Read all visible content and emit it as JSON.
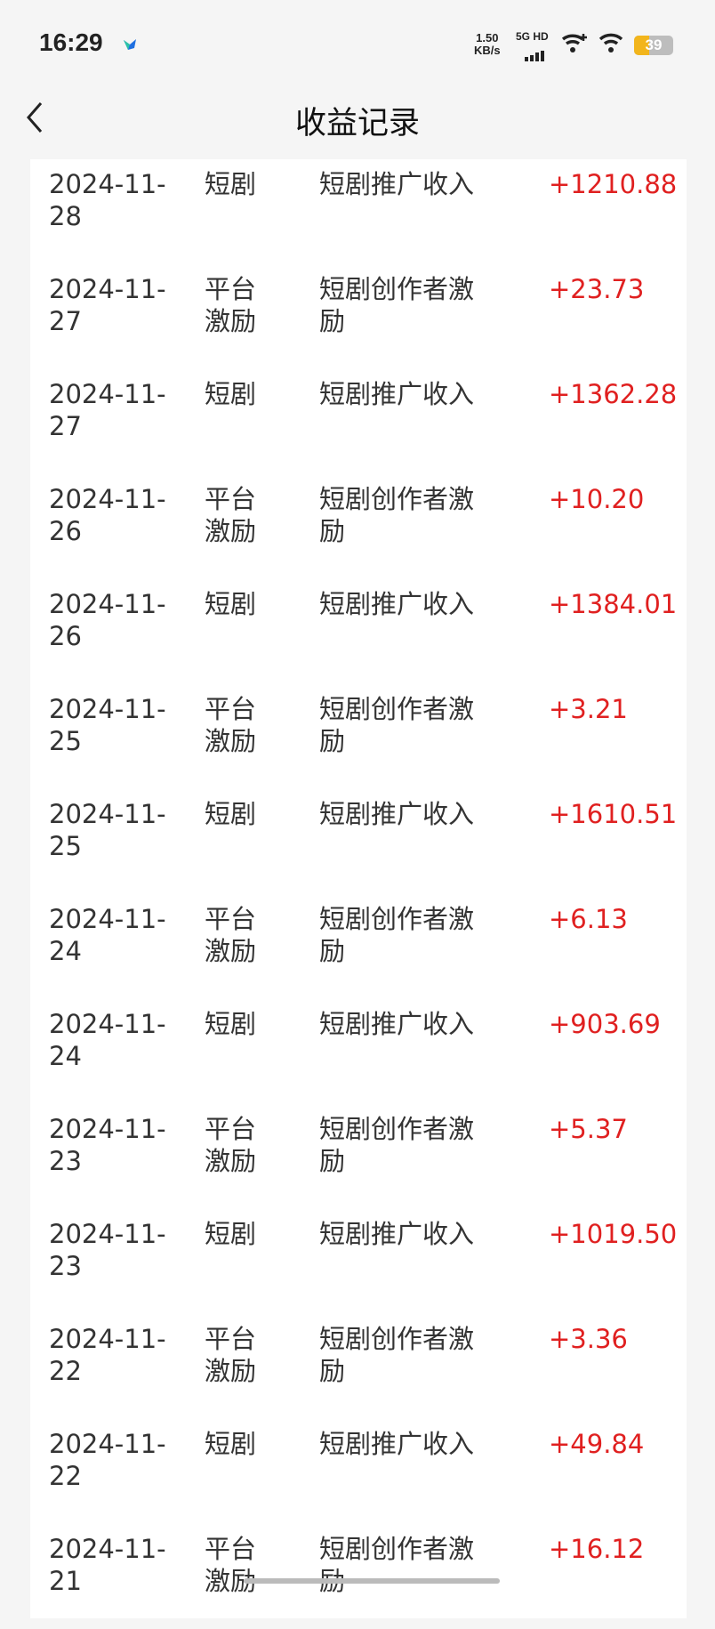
{
  "status_bar": {
    "time": "16:29",
    "net_speed": "1.50",
    "net_unit": "KB/s",
    "signal_label": "5G HD",
    "battery": "39",
    "battery_level_percent": 39
  },
  "header": {
    "title": "收益记录",
    "back_icon": "chevron-left-icon"
  },
  "colors": {
    "amount": "#e02020",
    "battery": "#f2b51c"
  },
  "records": [
    {
      "date": "2024-11-28",
      "type": "短剧",
      "desc": "短剧推广收入",
      "amount": "+1210.88"
    },
    {
      "date": "2024-11-27",
      "type": "平台激励",
      "desc": "短剧创作者激励",
      "amount": "+23.73"
    },
    {
      "date": "2024-11-27",
      "type": "短剧",
      "desc": "短剧推广收入",
      "amount": "+1362.28"
    },
    {
      "date": "2024-11-26",
      "type": "平台激励",
      "desc": "短剧创作者激励",
      "amount": "+10.20"
    },
    {
      "date": "2024-11-26",
      "type": "短剧",
      "desc": "短剧推广收入",
      "amount": "+1384.01"
    },
    {
      "date": "2024-11-25",
      "type": "平台激励",
      "desc": "短剧创作者激励",
      "amount": "+3.21"
    },
    {
      "date": "2024-11-25",
      "type": "短剧",
      "desc": "短剧推广收入",
      "amount": "+1610.51"
    },
    {
      "date": "2024-11-24",
      "type": "平台激励",
      "desc": "短剧创作者激励",
      "amount": "+6.13"
    },
    {
      "date": "2024-11-24",
      "type": "短剧",
      "desc": "短剧推广收入",
      "amount": "+903.69"
    },
    {
      "date": "2024-11-23",
      "type": "平台激励",
      "desc": "短剧创作者激励",
      "amount": "+5.37"
    },
    {
      "date": "2024-11-23",
      "type": "短剧",
      "desc": "短剧推广收入",
      "amount": "+1019.50"
    },
    {
      "date": "2024-11-22",
      "type": "平台激励",
      "desc": "短剧创作者激励",
      "amount": "+3.36"
    },
    {
      "date": "2024-11-22",
      "type": "短剧",
      "desc": "短剧推广收入",
      "amount": "+49.84"
    },
    {
      "date": "2024-11-21",
      "type": "平台激励",
      "desc": "短剧创作者激励",
      "amount": "+16.12"
    }
  ]
}
